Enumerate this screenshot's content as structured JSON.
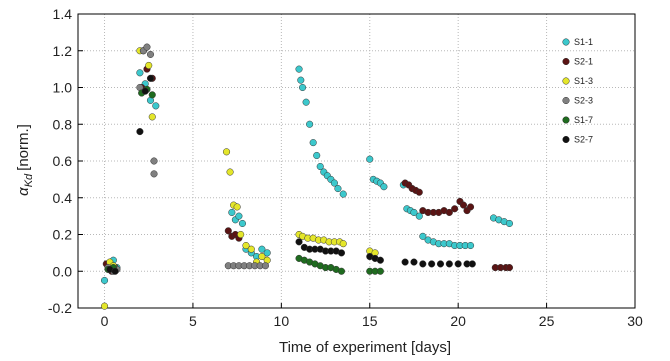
{
  "chart_data": {
    "type": "scatter",
    "xlabel": "Time of experiment [days]",
    "ylabel": "[norm.]",
    "ylabel_symbol": "α",
    "ylabel_subscript": "Kd",
    "xlim": [
      -1.5,
      30
    ],
    "ylim": [
      -0.2,
      1.4
    ],
    "x_ticks": [
      "0",
      "5",
      "10",
      "15",
      "20",
      "25",
      "30"
    ],
    "y_ticks": [
      "-0.2",
      "0.0",
      "0.2",
      "0.4",
      "0.6",
      "0.8",
      "1.0",
      "1.2",
      "1.4"
    ],
    "grid": true,
    "legend_position": "top-right",
    "series": [
      {
        "name": "S1-1",
        "color": "#3cc8cc",
        "points": [
          [
            0.0,
            -0.05
          ],
          [
            0.3,
            0.02
          ],
          [
            0.5,
            0.06
          ],
          [
            0.7,
            0.02
          ],
          [
            2.0,
            1.08
          ],
          [
            2.3,
            1.02
          ],
          [
            2.6,
            0.93
          ],
          [
            2.9,
            0.9
          ],
          [
            7.2,
            0.32
          ],
          [
            7.4,
            0.28
          ],
          [
            7.6,
            0.3
          ],
          [
            7.8,
            0.26
          ],
          [
            8.0,
            0.12
          ],
          [
            8.3,
            0.1
          ],
          [
            8.6,
            0.08
          ],
          [
            8.9,
            0.12
          ],
          [
            9.2,
            0.1
          ],
          [
            11.0,
            1.1
          ],
          [
            11.1,
            1.04
          ],
          [
            11.2,
            1.0
          ],
          [
            11.4,
            0.92
          ],
          [
            11.6,
            0.8
          ],
          [
            11.8,
            0.7
          ],
          [
            12.0,
            0.63
          ],
          [
            12.2,
            0.57
          ],
          [
            12.4,
            0.54
          ],
          [
            12.6,
            0.52
          ],
          [
            12.8,
            0.5
          ],
          [
            13.0,
            0.48
          ],
          [
            13.2,
            0.45
          ],
          [
            13.5,
            0.42
          ],
          [
            15.0,
            0.61
          ],
          [
            15.2,
            0.5
          ],
          [
            15.4,
            0.49
          ],
          [
            15.6,
            0.48
          ],
          [
            15.8,
            0.46
          ],
          [
            16.9,
            0.47
          ],
          [
            17.1,
            0.34
          ],
          [
            17.3,
            0.33
          ],
          [
            17.5,
            0.32
          ],
          [
            17.8,
            0.3
          ],
          [
            18.0,
            0.19
          ],
          [
            18.3,
            0.17
          ],
          [
            18.6,
            0.16
          ],
          [
            18.9,
            0.15
          ],
          [
            19.2,
            0.15
          ],
          [
            19.5,
            0.15
          ],
          [
            19.8,
            0.14
          ],
          [
            20.1,
            0.14
          ],
          [
            20.4,
            0.14
          ],
          [
            20.7,
            0.14
          ],
          [
            22.0,
            0.29
          ],
          [
            22.3,
            0.28
          ],
          [
            22.6,
            0.27
          ],
          [
            22.9,
            0.26
          ]
        ]
      },
      {
        "name": "S2-1",
        "color": "#5a1414",
        "points": [
          [
            0.1,
            0.04
          ],
          [
            0.4,
            0.0
          ],
          [
            0.6,
            0.02
          ],
          [
            2.1,
            1.0
          ],
          [
            2.4,
            1.1
          ],
          [
            2.7,
            1.05
          ],
          [
            7.0,
            0.22
          ],
          [
            7.2,
            0.19
          ],
          [
            7.4,
            0.2
          ],
          [
            7.6,
            0.18
          ],
          [
            17.0,
            0.48
          ],
          [
            17.2,
            0.47
          ],
          [
            17.4,
            0.45
          ],
          [
            17.6,
            0.44
          ],
          [
            17.8,
            0.43
          ],
          [
            18.0,
            0.33
          ],
          [
            18.3,
            0.32
          ],
          [
            18.6,
            0.32
          ],
          [
            18.9,
            0.32
          ],
          [
            19.2,
            0.33
          ],
          [
            19.5,
            0.32
          ],
          [
            19.8,
            0.34
          ],
          [
            20.1,
            0.38
          ],
          [
            20.3,
            0.36
          ],
          [
            20.5,
            0.33
          ],
          [
            20.7,
            0.35
          ],
          [
            22.1,
            0.02
          ],
          [
            22.4,
            0.02
          ],
          [
            22.7,
            0.02
          ],
          [
            22.9,
            0.02
          ]
        ]
      },
      {
        "name": "S1-3",
        "color": "#e4e62a",
        "points": [
          [
            0.0,
            -0.19
          ],
          [
            0.3,
            0.05
          ],
          [
            0.5,
            0.03
          ],
          [
            2.0,
            1.2
          ],
          [
            2.2,
            1.2
          ],
          [
            2.5,
            1.12
          ],
          [
            2.7,
            0.84
          ],
          [
            6.9,
            0.65
          ],
          [
            7.1,
            0.54
          ],
          [
            7.3,
            0.36
          ],
          [
            7.5,
            0.35
          ],
          [
            7.7,
            0.2
          ],
          [
            8.0,
            0.14
          ],
          [
            8.3,
            0.12
          ],
          [
            8.6,
            0.05
          ],
          [
            8.9,
            0.08
          ],
          [
            9.2,
            0.06
          ],
          [
            11.0,
            0.2
          ],
          [
            11.2,
            0.19
          ],
          [
            11.5,
            0.18
          ],
          [
            11.8,
            0.18
          ],
          [
            12.1,
            0.17
          ],
          [
            12.4,
            0.17
          ],
          [
            12.7,
            0.16
          ],
          [
            13.0,
            0.16
          ],
          [
            13.3,
            0.16
          ],
          [
            13.5,
            0.15
          ],
          [
            15.0,
            0.11
          ],
          [
            15.3,
            0.1
          ]
        ]
      },
      {
        "name": "S2-3",
        "color": "#808080",
        "points": [
          [
            0.2,
            0.02
          ],
          [
            0.5,
            0.0
          ],
          [
            0.7,
            0.01
          ],
          [
            2.0,
            1.0
          ],
          [
            2.2,
            1.2
          ],
          [
            2.4,
            1.22
          ],
          [
            2.6,
            1.18
          ],
          [
            2.8,
            0.6
          ],
          [
            2.8,
            0.53
          ],
          [
            7.0,
            0.03
          ],
          [
            7.3,
            0.03
          ],
          [
            7.6,
            0.03
          ],
          [
            7.9,
            0.03
          ],
          [
            8.2,
            0.03
          ],
          [
            8.5,
            0.03
          ],
          [
            8.8,
            0.03
          ],
          [
            9.1,
            0.03
          ]
        ]
      },
      {
        "name": "S1-7",
        "color": "#1f6b1f",
        "points": [
          [
            0.2,
            0.01
          ],
          [
            0.5,
            0.02
          ],
          [
            2.1,
            0.97
          ],
          [
            2.4,
            0.99
          ],
          [
            2.7,
            0.96
          ],
          [
            11.0,
            0.07
          ],
          [
            11.3,
            0.06
          ],
          [
            11.6,
            0.05
          ],
          [
            11.9,
            0.04
          ],
          [
            12.2,
            0.03
          ],
          [
            12.5,
            0.02
          ],
          [
            12.8,
            0.02
          ],
          [
            13.1,
            0.01
          ],
          [
            13.4,
            0.0
          ],
          [
            15.0,
            0.0
          ],
          [
            15.3,
            0.0
          ],
          [
            15.6,
            0.0
          ]
        ]
      },
      {
        "name": "S2-7",
        "color": "#111111",
        "points": [
          [
            0.3,
            0.01
          ],
          [
            0.6,
            0.0
          ],
          [
            2.0,
            0.76
          ],
          [
            2.3,
            0.98
          ],
          [
            2.6,
            1.05
          ],
          [
            11.0,
            0.16
          ],
          [
            11.3,
            0.13
          ],
          [
            11.6,
            0.12
          ],
          [
            11.9,
            0.12
          ],
          [
            12.2,
            0.12
          ],
          [
            12.5,
            0.11
          ],
          [
            12.8,
            0.11
          ],
          [
            13.1,
            0.11
          ],
          [
            13.4,
            0.1
          ],
          [
            15.0,
            0.08
          ],
          [
            15.3,
            0.07
          ],
          [
            15.6,
            0.06
          ],
          [
            17.0,
            0.05
          ],
          [
            17.5,
            0.05
          ],
          [
            18.0,
            0.04
          ],
          [
            18.5,
            0.04
          ],
          [
            19.0,
            0.04
          ],
          [
            19.5,
            0.04
          ],
          [
            20.0,
            0.04
          ],
          [
            20.5,
            0.04
          ],
          [
            20.8,
            0.04
          ]
        ]
      }
    ]
  }
}
